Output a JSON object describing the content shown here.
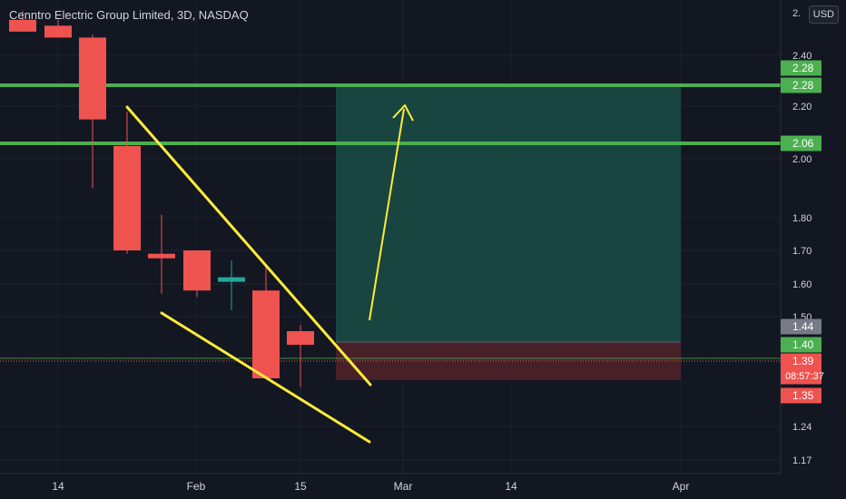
{
  "header": {
    "title": "Cenntro Electric Group Limited, 3D, NASDAQ",
    "currency": "USD"
  },
  "colors": {
    "background": "#131722",
    "up": "#26a69a",
    "down": "#ef5350",
    "level_line": "#4caf50",
    "trendline": "#ffeb3b",
    "axis_text": "#d1d4dc"
  },
  "chart_data": {
    "type": "candlestick",
    "symbol": "Cenntro Electric Group Limited",
    "interval": "3D",
    "exchange": "NASDAQ",
    "currency": "USD",
    "x_ticks": [
      "14",
      "Feb",
      "15",
      "Mar",
      "14",
      "Apr"
    ],
    "y_ticks": [
      "2.40",
      "2.20",
      "2.00",
      "1.80",
      "1.70",
      "1.60",
      "1.50",
      "1.24",
      "1.17"
    ],
    "candles": [
      {
        "open": 2.52,
        "high": 2.55,
        "low": 2.48,
        "close": 2.48
      },
      {
        "open": 2.5,
        "high": 2.52,
        "low": 2.46,
        "close": 2.46
      },
      {
        "open": 2.46,
        "high": 2.47,
        "low": 1.9,
        "close": 2.15
      },
      {
        "open": 2.05,
        "high": 2.18,
        "low": 1.69,
        "close": 1.7
      },
      {
        "open": 1.69,
        "high": 1.81,
        "low": 1.57,
        "close": 1.68
      },
      {
        "open": 1.7,
        "high": 1.7,
        "low": 1.56,
        "close": 1.58
      },
      {
        "open": 1.61,
        "high": 1.67,
        "low": 1.52,
        "close": 1.62
      },
      {
        "open": 1.58,
        "high": 1.65,
        "low": 1.37,
        "close": 1.37
      },
      {
        "open": 1.43,
        "high": 1.45,
        "low": 1.36,
        "close": 1.4
      }
    ],
    "horizontal_levels": [
      2.28,
      2.06
    ],
    "price_labels": [
      {
        "value": "2.28",
        "color": "#4caf50"
      },
      {
        "value": "2.28",
        "color": "#4caf50"
      },
      {
        "value": "2.06",
        "color": "#4caf50"
      },
      {
        "value": "1.44",
        "color": "#787b86"
      },
      {
        "value": "1.40",
        "color": "#4caf50"
      },
      {
        "value": "1.39",
        "color": "#ef5350"
      },
      {
        "value": "1.35",
        "color": "#ef5350"
      }
    ],
    "countdown": "08:57:37",
    "position": {
      "entry": 1.44,
      "target": 2.28,
      "stop": 1.35
    },
    "pattern": "falling wedge",
    "grid": true
  }
}
